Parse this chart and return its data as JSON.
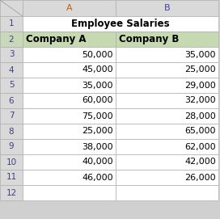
{
  "title": "Employee Salaries",
  "headers": [
    "Company A",
    "Company B"
  ],
  "company_a": [
    50000,
    45000,
    35000,
    60000,
    75000,
    25000,
    38000,
    40000,
    46000
  ],
  "company_b": [
    35000,
    25000,
    29000,
    32000,
    28000,
    65000,
    62000,
    42000,
    26000
  ],
  "row_numbers": [
    "1",
    "2",
    "3",
    "4",
    "5",
    "6",
    "7",
    "8",
    "9",
    "10",
    "11",
    "12"
  ],
  "header_bg": "#c6d9b0",
  "title_bg": "#ffffff",
  "row_bg": "#ffffff",
  "border_color": "#b0b0b0",
  "col_header_bg": "#d9d9d9",
  "row_num_bg": "#d9d9d9",
  "corner_bg": "#d9d9d9",
  "title_fontsize": 8.5,
  "data_fontsize": 8.0,
  "header_fontsize": 8.5,
  "col_letter_fontsize": 8.0,
  "row_num_fontsize": 7.5
}
